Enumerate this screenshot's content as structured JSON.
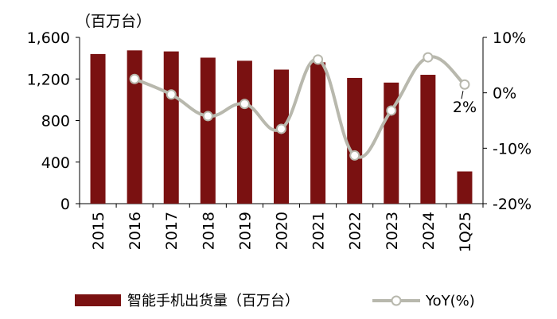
{
  "chart_data": {
    "type": "bar+line",
    "title": "",
    "unit_label": "（百万台）",
    "categories": [
      "2015",
      "2016",
      "2017",
      "2018",
      "2019",
      "2020",
      "2021",
      "2022",
      "2023",
      "2024",
      "1Q25"
    ],
    "series": [
      {
        "name": "智能手机出货量（百万台）",
        "type": "bar",
        "axis": "left",
        "color": "#7a1111",
        "values": [
          1440,
          1475,
          1465,
          1405,
          1375,
          1290,
          1360,
          1210,
          1165,
          1240,
          310
        ]
      },
      {
        "name": "YoY(%)",
        "type": "line",
        "axis": "right",
        "color": "#b8b8ad",
        "values": [
          null,
          2.5,
          -0.3,
          -4.2,
          -2.0,
          -6.5,
          6.0,
          -11.3,
          -3.2,
          6.4,
          1.5
        ]
      }
    ],
    "y_left": {
      "min": 0,
      "max": 1600,
      "ticks": [
        0,
        400,
        800,
        1200,
        1600
      ],
      "tick_labels": [
        "0",
        "400",
        "800",
        "1,200",
        "1,600"
      ]
    },
    "y_right": {
      "min": -20,
      "max": 10,
      "ticks": [
        -20,
        -10,
        0,
        10
      ],
      "tick_labels": [
        "-20%",
        "-10%",
        "0%",
        "10%"
      ]
    },
    "annotations": [
      {
        "category": "1Q25",
        "series": "YoY(%)",
        "text": "2%"
      }
    ],
    "grid": false,
    "legend": "bottom"
  }
}
